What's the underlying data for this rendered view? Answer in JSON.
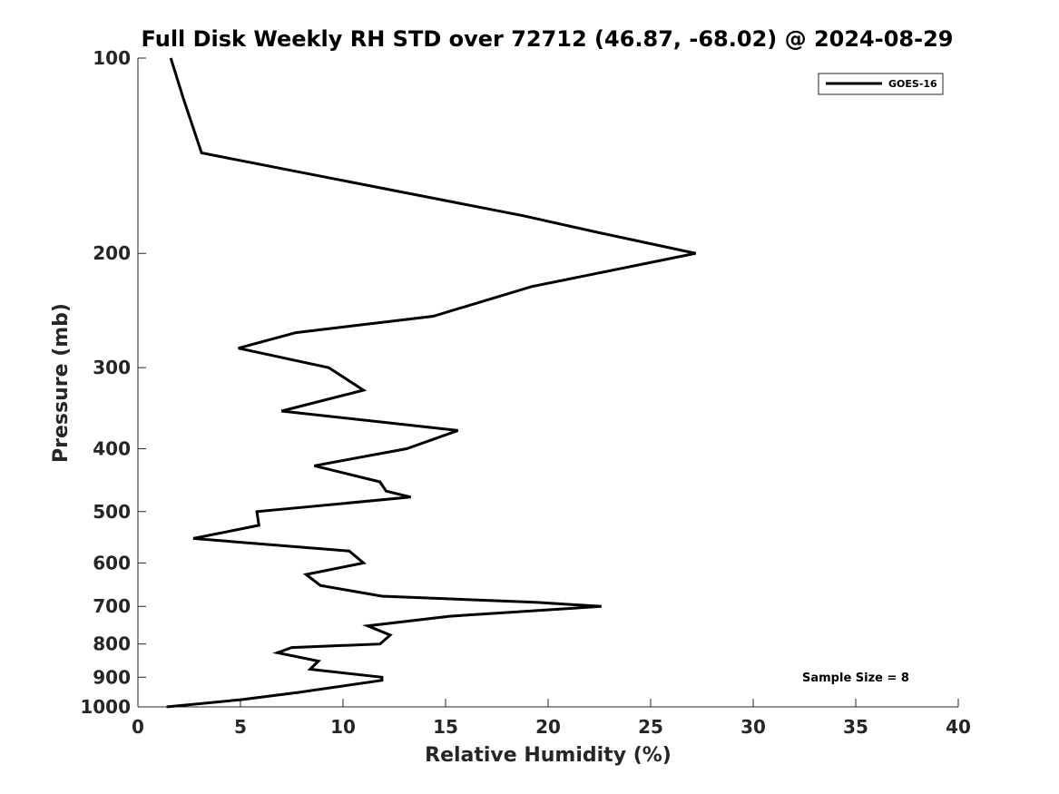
{
  "chart_data": {
    "type": "line",
    "title": "Full Disk Weekly RH STD over 72712 (46.87, -68.02) @ 2024-08-29",
    "xlabel": "Relative Humidity (%)",
    "ylabel": "Pressure (mb)",
    "xlim": [
      0,
      40
    ],
    "ylim": [
      100,
      1000
    ],
    "y_scale": "log",
    "y_reversed": true,
    "x_ticks": [
      0,
      5,
      10,
      15,
      20,
      25,
      30,
      35,
      40
    ],
    "y_ticks": [
      100,
      200,
      300,
      400,
      500,
      600,
      700,
      800,
      900,
      1000
    ],
    "grid": false,
    "legend_position": "top-right",
    "annotation": "Sample Size = 8",
    "series": [
      {
        "name": "GOES-16",
        "color": "#000000",
        "x": [
          1.6,
          2.2,
          3.1,
          18.8,
          22.2,
          27.2,
          19.2,
          14.4,
          7.7,
          4.9,
          9.3,
          11.0,
          7.0,
          15.6,
          13.1,
          8.6,
          11.8,
          12.1,
          13.3,
          5.8,
          5.9,
          2.7,
          10.3,
          11.0,
          8.2,
          8.9,
          11.9,
          19.4,
          22.6,
          15.2,
          11.2,
          12.3,
          11.8,
          7.5,
          6.8,
          8.8,
          8.4,
          11.9,
          11.9,
          7.8,
          5.0,
          1.4
        ],
        "y": [
          100,
          115,
          140,
          175,
          185,
          200,
          225,
          250,
          265,
          280,
          300,
          325,
          350,
          375,
          400,
          425,
          450,
          465,
          475,
          500,
          525,
          550,
          575,
          600,
          625,
          650,
          675,
          690,
          700,
          725,
          750,
          775,
          800,
          810,
          825,
          850,
          875,
          900,
          910,
          950,
          975,
          1000
        ]
      }
    ]
  }
}
